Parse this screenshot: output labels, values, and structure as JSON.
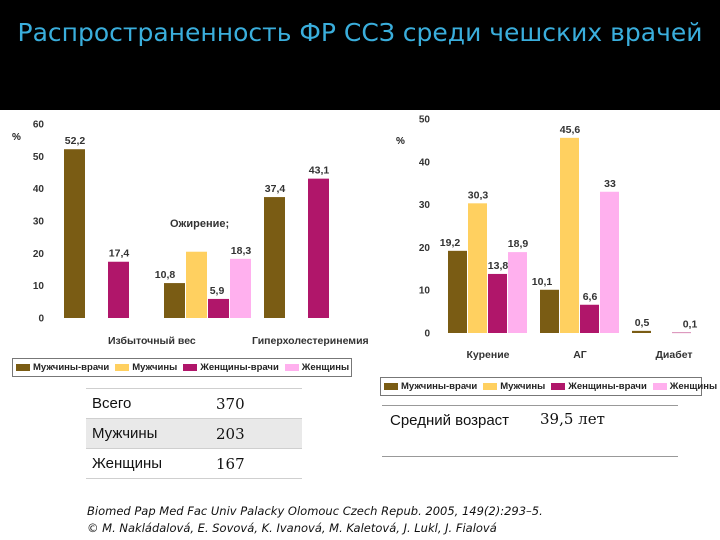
{
  "title": "Распространенность ФР ССЗ среди чешских врачей",
  "colors": {
    "Мужчины-врачи": "#7a5c14",
    "Мужчины": "#ffd060",
    "Женщины-врачи": "#b0166a",
    "Женщины": "#ffb0ee"
  },
  "chart_data": [
    {
      "type": "bar",
      "ylabel": "%",
      "ylim": [
        0,
        60
      ],
      "yticks": [
        0,
        10,
        20,
        30,
        40,
        50,
        60
      ],
      "annotation": "Ожирение;",
      "legend_position": "bottom",
      "categories": [
        "Избыточный вес",
        "Ожирение",
        "Гиперхолестеринемия"
      ],
      "category_labels": [
        "Избыточный вес",
        "",
        "Гиперхолестеринемия"
      ],
      "series": [
        {
          "name": "Мужчины-врачи",
          "values": [
            52.2,
            10.8,
            37.4
          ],
          "labels": [
            "52,2",
            "10,8",
            "37,4"
          ]
        },
        {
          "name": "Мужчины",
          "values": [
            null,
            20.5,
            null
          ],
          "labels": [
            "",
            "",
            ""
          ]
        },
        {
          "name": "Женщины-врачи",
          "values": [
            17.4,
            5.9,
            43.1
          ],
          "labels": [
            "17,4",
            "5,9",
            "43,1"
          ]
        },
        {
          "name": "Женщины",
          "values": [
            null,
            18.3,
            null
          ],
          "labels": [
            "",
            "18,3",
            ""
          ]
        }
      ]
    },
    {
      "type": "bar",
      "ylabel": "%",
      "ylim": [
        0,
        50
      ],
      "yticks": [
        0,
        10,
        20,
        30,
        40,
        50
      ],
      "legend_position": "bottom",
      "categories": [
        "Курение",
        "АГ",
        "Диабет"
      ],
      "series": [
        {
          "name": "Мужчины-врачи",
          "values": [
            19.2,
            10.1,
            0.5
          ],
          "labels": [
            "19,2",
            "10,1",
            "0,5"
          ]
        },
        {
          "name": "Мужчины",
          "values": [
            30.3,
            45.6,
            null
          ],
          "labels": [
            "30,3",
            "45,6",
            ""
          ]
        },
        {
          "name": "Женщины-врачи",
          "values": [
            13.8,
            6.6,
            0.1
          ],
          "labels": [
            "13,8",
            "6,6",
            "0,1"
          ]
        },
        {
          "name": "Женщины",
          "values": [
            18.9,
            33,
            null
          ],
          "labels": [
            "18,9",
            "33",
            ""
          ]
        }
      ]
    }
  ],
  "table": [
    {
      "label": "Всего",
      "value": "370"
    },
    {
      "label": "Мужчины",
      "value": "203"
    },
    {
      "label": "Женщины",
      "value": "167"
    }
  ],
  "age": {
    "label": "Средний возраст",
    "value": "39,5 лет"
  },
  "citation": {
    "line1": "Biomed Pap Med Fac Univ Palacky Olomouc Czech Repub. 2005, 149(2):293–5.",
    "line2": "© M. Nakládalová, E. Sovová, K. Ivanová, M. Kaletová, J. Lukl, J. Fialová"
  }
}
